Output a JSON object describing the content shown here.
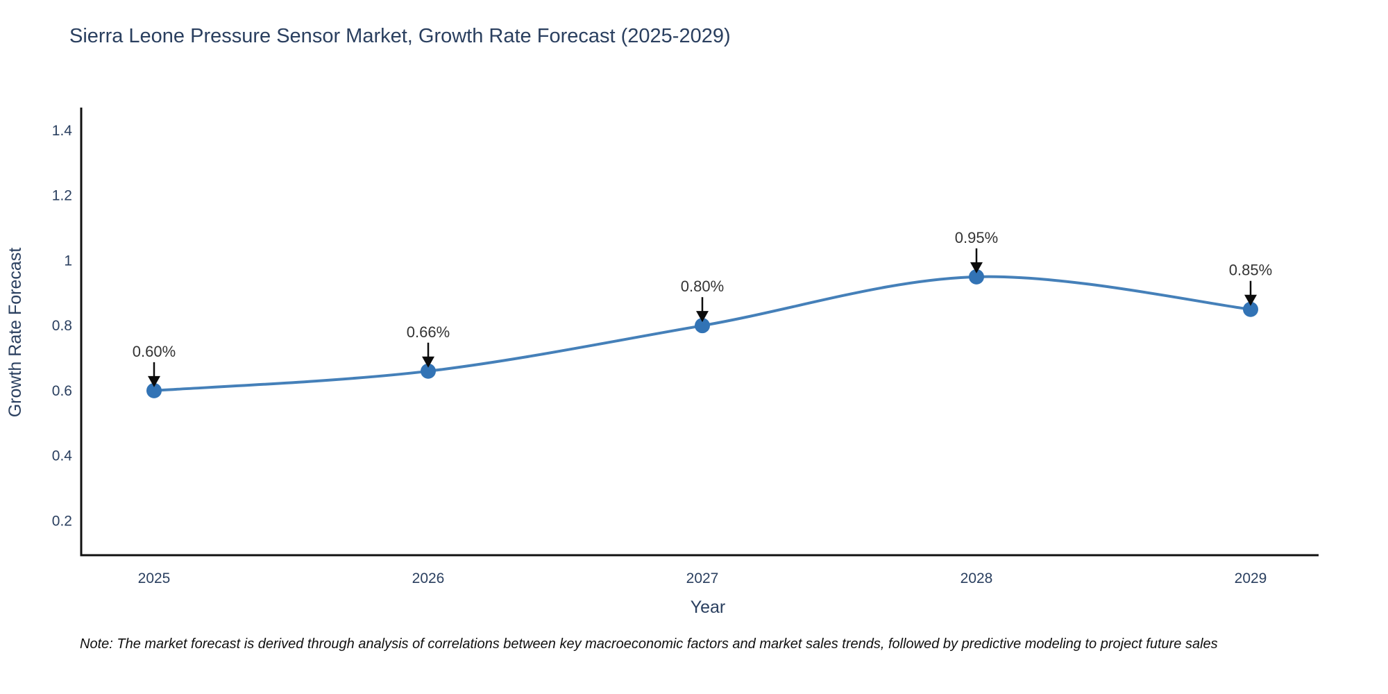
{
  "chart": {
    "title": "Sierra Leone Pressure Sensor Market, Growth Rate Forecast (2025-2029)"
  },
  "chart_data": {
    "type": "line",
    "line_shape": "spline",
    "x": [
      "2025",
      "2026",
      "2027",
      "2028",
      "2029"
    ],
    "series": [
      {
        "name": "Growth Rate Forecast",
        "values": [
          0.6,
          0.66,
          0.8,
          0.95,
          0.85
        ]
      }
    ],
    "point_labels": [
      "0.60%",
      "0.66%",
      "0.80%",
      "0.95%",
      "0.85%"
    ],
    "xlabel": "Year",
    "ylabel": "Growth Rate Forecast",
    "yticks": [
      {
        "value": 0.2,
        "label": "0.2"
      },
      {
        "value": 0.4,
        "label": "0.4"
      },
      {
        "value": 0.6,
        "label": "0.6"
      },
      {
        "value": 0.8,
        "label": "0.8"
      },
      {
        "value": 1.0,
        "label": "1"
      },
      {
        "value": 1.2,
        "label": "1.2"
      },
      {
        "value": 1.4,
        "label": "1.4"
      }
    ],
    "ylim": [
      0.094,
      1.464
    ],
    "grid": false,
    "legend": "none",
    "colors": {
      "line": "#4580b9",
      "marker": "#3273b5",
      "axis": "#101010",
      "axis_text": "#2a3f5f",
      "annotation_text": "#333333",
      "arrow": "#0c0c0c",
      "background": "#ffffff"
    }
  },
  "note": "Note: The market forecast is derived through analysis of correlations between key macroeconomic factors and market sales trends, followed by predictive modeling to project future sales"
}
